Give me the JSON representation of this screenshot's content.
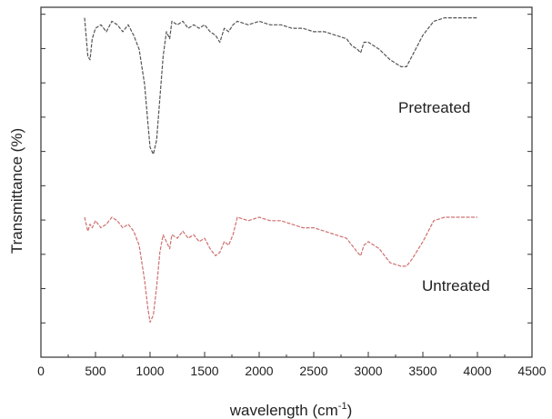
{
  "chart_data": {
    "type": "line",
    "xlabel": "wavelength (cm",
    "xlabel_sup": "-1",
    "xlabel_close": ")",
    "ylabel": "Transmittance (%)",
    "xlim": [
      0,
      4500
    ],
    "ylim": [
      0,
      100
    ],
    "x_ticks": [
      0,
      500,
      1000,
      1500,
      2000,
      2500,
      3000,
      3500,
      4000,
      4500
    ],
    "y_tick_labels_visible": false,
    "grid": false,
    "legend": "none",
    "series": [
      {
        "name": "Pretreated",
        "color": "#555555",
        "x": [
          400,
          430,
          450,
          470,
          500,
          550,
          600,
          650,
          700,
          750,
          800,
          850,
          900,
          950,
          980,
          1000,
          1030,
          1060,
          1090,
          1120,
          1150,
          1180,
          1200,
          1250,
          1300,
          1350,
          1400,
          1450,
          1500,
          1550,
          1600,
          1640,
          1680,
          1720,
          1760,
          1800,
          1900,
          2000,
          2100,
          2200,
          2300,
          2400,
          2500,
          2600,
          2700,
          2800,
          2850,
          2900,
          2930,
          2960,
          3000,
          3100,
          3200,
          3300,
          3350,
          3400,
          3500,
          3600,
          3700,
          3800,
          3900,
          4000
        ],
        "y": [
          97,
          86,
          85,
          91,
          94,
          95,
          93,
          96,
          95,
          93,
          95,
          92,
          88,
          78,
          67,
          60,
          58,
          62,
          74,
          86,
          93,
          91,
          96,
          95,
          96,
          94,
          95,
          94,
          95,
          93,
          92,
          90,
          94,
          93,
          95,
          96,
          95,
          96,
          95,
          95,
          94,
          94,
          93,
          93,
          92,
          91,
          89,
          88,
          87,
          90,
          90,
          88,
          85,
          83,
          83,
          86,
          92,
          96,
          97,
          97,
          97,
          97
        ]
      },
      {
        "name": "Untreated",
        "color": "#d07070",
        "x": [
          400,
          430,
          450,
          470,
          500,
          550,
          600,
          650,
          700,
          750,
          800,
          850,
          900,
          950,
          980,
          1000,
          1030,
          1060,
          1090,
          1120,
          1150,
          1180,
          1200,
          1250,
          1300,
          1350,
          1400,
          1450,
          1500,
          1550,
          1600,
          1640,
          1680,
          1720,
          1760,
          1800,
          1900,
          2000,
          2100,
          2200,
          2300,
          2400,
          2500,
          2600,
          2700,
          2800,
          2850,
          2900,
          2930,
          2960,
          3000,
          3100,
          3200,
          3300,
          3350,
          3400,
          3500,
          3600,
          3700,
          3800,
          3900,
          4000
        ],
        "y": [
          40,
          36,
          38,
          37,
          39,
          37,
          38,
          40,
          39,
          37,
          38,
          36,
          32,
          22,
          14,
          10,
          12,
          20,
          30,
          35,
          33,
          31,
          35,
          34,
          36,
          34,
          35,
          33,
          34,
          31,
          29,
          30,
          33,
          32,
          35,
          40,
          39,
          40,
          39,
          39,
          38,
          37,
          37,
          36,
          35,
          34,
          32,
          30,
          29,
          32,
          33,
          31,
          27,
          26,
          26,
          28,
          33,
          39,
          40,
          40,
          40,
          40
        ]
      }
    ],
    "annotations": [
      "Pretreated",
      "Untreated"
    ]
  }
}
